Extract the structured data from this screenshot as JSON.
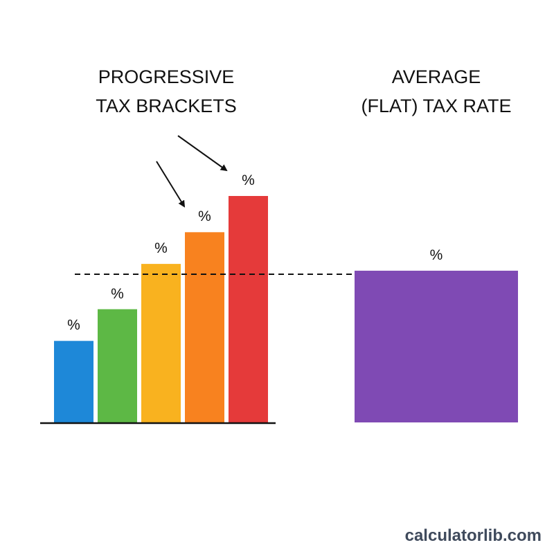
{
  "headings": {
    "progressive": [
      "PROGRESSIVE",
      "TAX BRACKETS"
    ],
    "flat": [
      "AVERAGE",
      "(FLAT) TAX RATE"
    ]
  },
  "brackets": [
    {
      "label": "%",
      "level": 0.36,
      "color": "#1e88d8"
    },
    {
      "label": "%",
      "level": 0.5,
      "color": "#5db845"
    },
    {
      "label": "%",
      "level": 0.7,
      "color": "#f9b21f"
    },
    {
      "label": "%",
      "level": 0.84,
      "color": "#f8821f"
    },
    {
      "label": "%",
      "level": 1.0,
      "color": "#e53a3a"
    }
  ],
  "flat_bar": {
    "label": "%",
    "level": 0.67,
    "color": "#7f4ab4"
  },
  "watermark": "calculatorlib.com"
}
